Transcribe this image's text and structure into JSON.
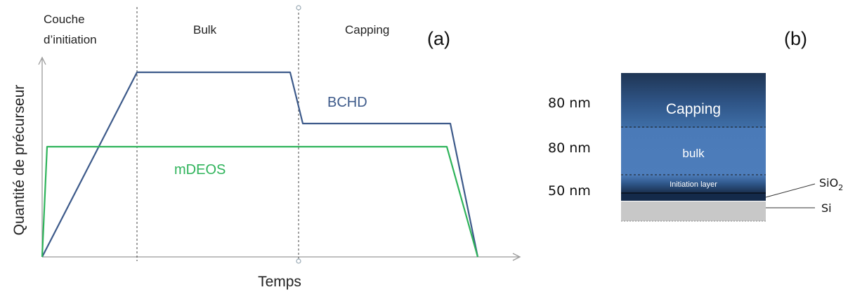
{
  "panel_a": {
    "tag": "(a)",
    "phases": [
      "Couche",
      "d’initiation",
      "Bulk",
      "Capping"
    ],
    "y_axis_label": "Quantité de précurseur",
    "x_axis_label": "Temps",
    "curves": [
      {
        "label": "BCHD",
        "color": "#3d5a8a"
      },
      {
        "label": "mDEOS",
        "color": "#2eb35a"
      }
    ]
  },
  "panel_b": {
    "tag": "(b)",
    "layers": [
      {
        "thickness": "80 nm",
        "label": "Capping"
      },
      {
        "thickness": "80 nm",
        "label": "bulk"
      },
      {
        "thickness": "50 nm",
        "label": "Initiation layer"
      }
    ],
    "sio2": {
      "base": "SiO",
      "sub": "2"
    },
    "si": "Si"
  }
}
